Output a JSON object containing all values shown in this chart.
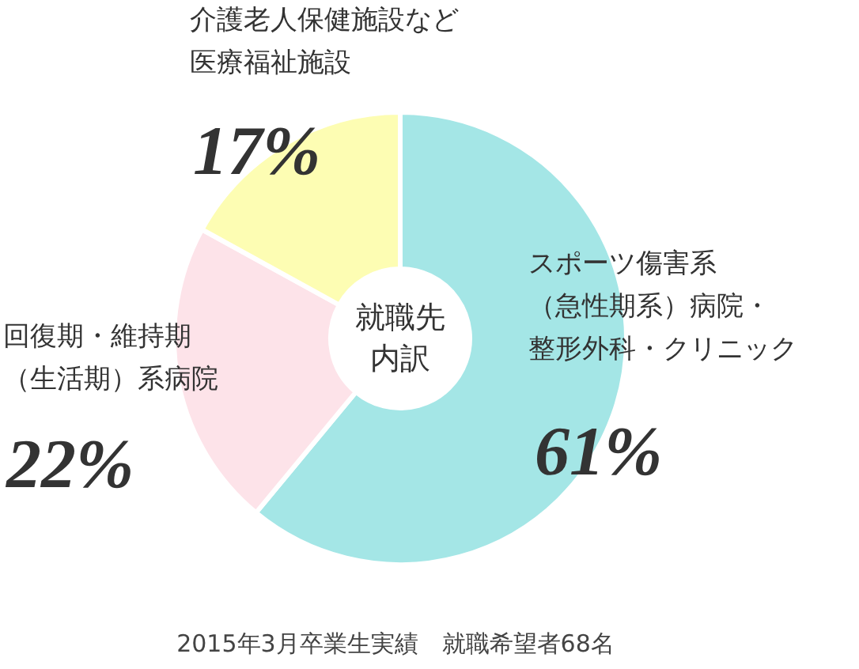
{
  "chart_data": {
    "type": "donut",
    "title": "就職先内訳",
    "categories": [
      "スポーツ傷害系（急性期系）病院・整形外科・クリニック",
      "回復期・維持期（生活期）系病院",
      "介護老人保健施設など医療福祉施設"
    ],
    "values": [
      61,
      22,
      17
    ],
    "colors": [
      "#a4e6e6",
      "#fde3e9",
      "#fdfdb3"
    ],
    "value_labels": [
      "61%",
      "22%",
      "17%"
    ],
    "annotations": [
      "2015年3月卒業生実績　就職希望者68名"
    ]
  }
}
